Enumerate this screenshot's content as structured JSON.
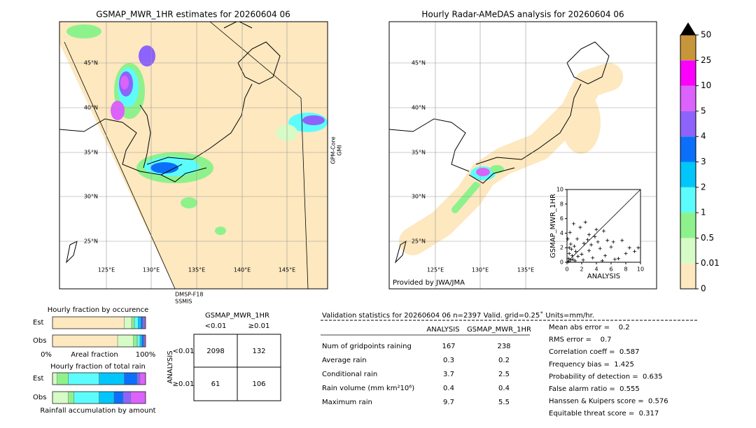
{
  "left_map": {
    "title": "GSMAP_MWR_1HR estimates for 20260604 06",
    "lat_labels": [
      "45°N",
      "40°N",
      "35°N",
      "30°N",
      "25°N"
    ],
    "lon_labels": [
      "125°E",
      "130°E",
      "135°E",
      "140°E",
      "145°E"
    ],
    "satellite_right": [
      "GPM-Core",
      "GMI"
    ],
    "satellite_bottom": [
      "DMSP-F18",
      "SSMIS"
    ]
  },
  "right_map": {
    "title": "Hourly Radar-AMeDAS analysis for 20260604 06",
    "lat_labels": [
      "45°N",
      "40°N",
      "35°N",
      "30°N",
      "25°N"
    ],
    "lon_labels": [
      "125°E",
      "130°E",
      "135°E"
    ],
    "credit": "Provided by JWA/JMA"
  },
  "colorbar": {
    "ticks": [
      0,
      0.01,
      0.5,
      1,
      2,
      3,
      4,
      5,
      10,
      25,
      50
    ],
    "colors": [
      "#fde8bf",
      "#d6fbc6",
      "#8ef28c",
      "#5dfcfc",
      "#00c6fb",
      "#0b6ffa",
      "#8d63fb",
      "#db62fb",
      "#fb00fb",
      "#c8963a"
    ]
  },
  "chart_data": [
    {
      "type": "scatter",
      "xlabel": "ANALYSIS",
      "ylabel": "GSMAP_MWR_1HR",
      "xlim": [
        0,
        10
      ],
      "ylim": [
        0,
        10
      ],
      "xticks": [
        0,
        2,
        4,
        6,
        8,
        10
      ],
      "yticks": [
        0,
        2,
        4,
        6,
        8,
        10
      ],
      "x": [
        0.2,
        0.3,
        0.5,
        0.1,
        0.4,
        0.6,
        0.8,
        1.0,
        1.2,
        0.2,
        0.5,
        1.5,
        2.0,
        2.3,
        2.8,
        3.0,
        3.3,
        3.5,
        3.8,
        4.2,
        4.5,
        5.0,
        5.2,
        5.5,
        6.0,
        6.3,
        7.0,
        7.5,
        8.0,
        8.5,
        9.2,
        9.7,
        2.5,
        1.8,
        0.9,
        4.0,
        3.0,
        1.4,
        0.3,
        0.7,
        1.1,
        2.2,
        4.8,
        6.5
      ],
      "y": [
        0.5,
        1.2,
        2.5,
        3.2,
        4.1,
        1.8,
        0.4,
        2.2,
        1.5,
        0.1,
        0.3,
        0.8,
        1.1,
        2.6,
        3.1,
        1.6,
        2.4,
        0.6,
        3.5,
        2.8,
        1.9,
        4.3,
        0.9,
        3.0,
        2.1,
        2.8,
        0.5,
        3.0,
        1.2,
        2.0,
        1.5,
        2.0,
        5.5,
        4.8,
        5.3,
        4.5,
        3.8,
        3.2,
        2.0,
        0.9,
        0.2,
        0.3,
        0.2,
        0.4
      ]
    },
    {
      "type": "stacked-bar",
      "title": "Hourly fraction by occurence",
      "categories": [
        "Est",
        "Obs"
      ],
      "xlabels": [
        "0%",
        "Areal fraction",
        "100%"
      ],
      "series": [
        {
          "values": [
            77,
            70
          ]
        },
        {
          "values": [
            8,
            17
          ]
        },
        {
          "values": [
            3,
            4
          ]
        },
        {
          "values": [
            4,
            3
          ]
        },
        {
          "values": [
            3,
            2
          ]
        },
        {
          "values": [
            2,
            2
          ]
        },
        {
          "values": [
            2,
            1
          ]
        },
        {
          "values": [
            1,
            1
          ]
        }
      ]
    },
    {
      "type": "stacked-bar",
      "title": "Hourly fraction of total rain",
      "categories": [
        "Est",
        "Obs"
      ],
      "xlabels": [
        "Rainfall accumulation by amount"
      ],
      "series": [
        {
          "values": [
            0,
            0
          ]
        },
        {
          "values": [
            5,
            17
          ]
        },
        {
          "values": [
            12,
            6
          ]
        },
        {
          "values": [
            33,
            27
          ]
        },
        {
          "values": [
            27,
            16
          ]
        },
        {
          "values": [
            14,
            10
          ]
        },
        {
          "values": [
            3,
            8
          ]
        },
        {
          "values": [
            6,
            16
          ]
        }
      ]
    }
  ],
  "contingency": {
    "title": "GSMAP_MWR_1HR",
    "col_headers": [
      "<0.01",
      "≥0.01"
    ],
    "row_axis": "ANALYSIS",
    "row_headers": [
      "<0.01",
      "≥0.01"
    ],
    "cells": [
      [
        2098,
        132
      ],
      [
        61,
        106
      ]
    ]
  },
  "validation": {
    "header": "Validation statistics for 20260604 06  n=2397 Valid. grid=0.25˚ Units=mm/hr.",
    "columns": [
      "ANALYSIS",
      "GSMAP_MWR_1HR"
    ],
    "rows": [
      {
        "label": "Num of gridpoints raining",
        "analysis": 167,
        "estimate": 238
      },
      {
        "label": "Average rain",
        "analysis": 0.3,
        "estimate": 0.2
      },
      {
        "label": "Conditional rain",
        "analysis": 3.7,
        "estimate": 2.5
      },
      {
        "label": "Rain volume (mm km²10⁶)",
        "analysis": 0.4,
        "estimate": 0.4
      },
      {
        "label": "Maximum rain",
        "analysis": 9.7,
        "estimate": 5.5
      }
    ],
    "scores": [
      "Mean abs error =    0.2",
      "RMS error =    0.7",
      "Correlation coeff =  0.587",
      "Frequency bias =  1.425",
      "Probability of detection =  0.635",
      "False alarm ratio =  0.555",
      "Hanssen & Kuipers score =  0.576",
      "Equitable threat score =  0.317"
    ]
  }
}
